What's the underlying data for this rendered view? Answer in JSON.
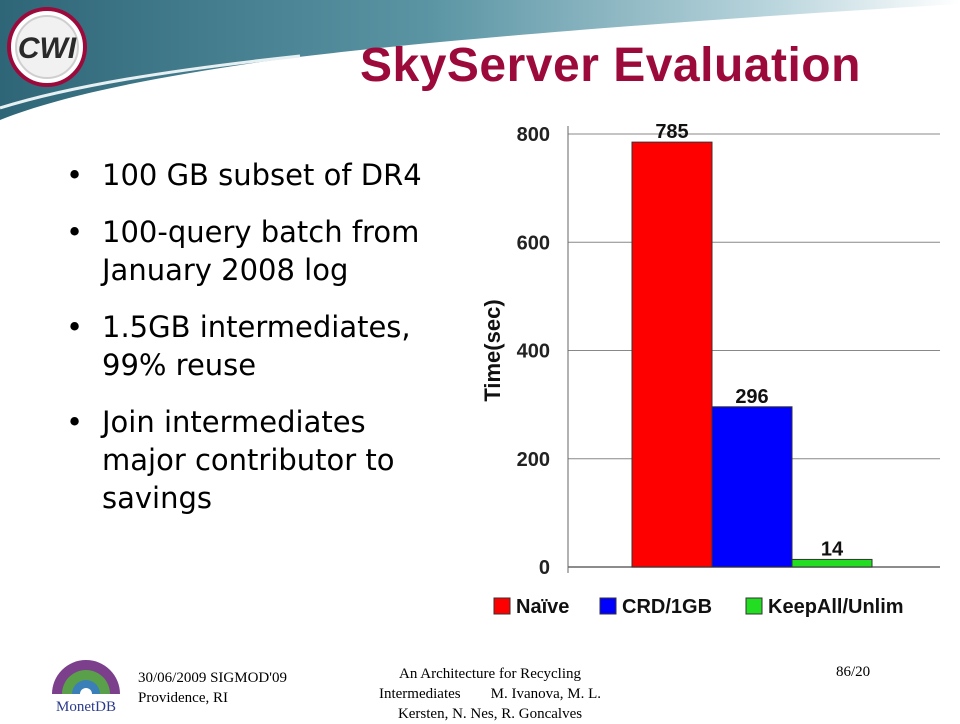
{
  "slide": {
    "title": "SkyServer Evaluation",
    "bullets": [
      "100 GB subset of DR4",
      "100-query batch from January 2008 log",
      "1.5GB intermediates, 99% reuse",
      "Join intermediates major contributor to savings"
    ],
    "logo_top_text": "CWI",
    "logo_bottom_text": "MonetDB",
    "footer": {
      "date_venue_line1": "30/06/2009 SIGMOD'09",
      "date_venue_line2": "Providence, RI",
      "center_line1": "An Architecture for Recycling",
      "center_line2": "Intermediates        M. Ivanova, M. L.",
      "center_line3": "Kersten, N. Nes, R. Goncalves",
      "page": "86/20"
    },
    "colors": {
      "title": "#9c0a3c",
      "banner": "#3f7a8a"
    }
  },
  "chart_data": {
    "type": "bar",
    "ylabel": "Time(sec)",
    "ylim": [
      0,
      800
    ],
    "yticks": [
      0,
      200,
      400,
      600,
      800
    ],
    "grid": true,
    "legend_position": "bottom",
    "series": [
      {
        "name": "Naïve",
        "value": 785,
        "color": "#ff0000"
      },
      {
        "name": "CRD/1GB",
        "value": 296,
        "color": "#0000ff"
      },
      {
        "name": "KeepAll/Unlim",
        "value": 14,
        "color": "#22dd22"
      }
    ]
  }
}
